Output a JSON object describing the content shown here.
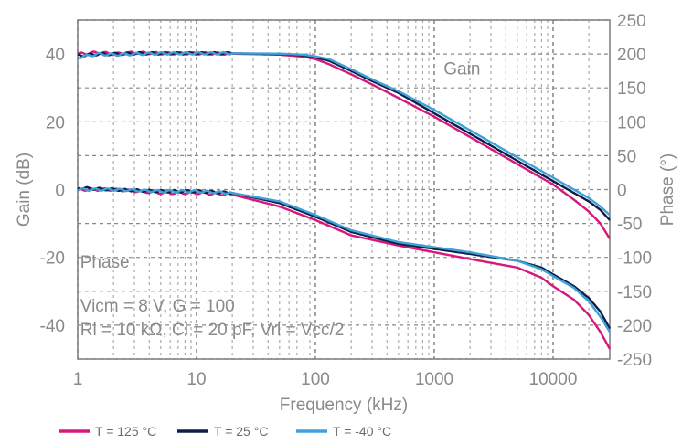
{
  "chart_data": {
    "type": "line",
    "xlabel": "Frequency (kHz)",
    "ylabel_left": "Gain (dB)",
    "ylabel_right": "Phase (°)",
    "x_scale": "log",
    "xlim": [
      1,
      30000
    ],
    "ylim_left": [
      -50,
      50
    ],
    "ylim_right": [
      -250,
      250
    ],
    "grid": true,
    "x_ticks": [
      {
        "value": 1,
        "label": "1"
      },
      {
        "value": 10,
        "label": "10"
      },
      {
        "value": 100,
        "label": "100"
      },
      {
        "value": 1000,
        "label": "1000"
      },
      {
        "value": 10000,
        "label": "10000"
      }
    ],
    "y_ticks_left": [
      {
        "value": 40,
        "label": "40"
      },
      {
        "value": 20,
        "label": "20"
      },
      {
        "value": 0,
        "label": "0"
      },
      {
        "value": -20,
        "label": "-20"
      },
      {
        "value": -40,
        "label": "-40"
      }
    ],
    "y_ticks_right": [
      {
        "value": 250,
        "label": "250"
      },
      {
        "value": 200,
        "label": "200"
      },
      {
        "value": 150,
        "label": "150"
      },
      {
        "value": 100,
        "label": "100"
      },
      {
        "value": 50,
        "label": "50"
      },
      {
        "value": 0,
        "label": "0"
      },
      {
        "value": -50,
        "label": "-50"
      },
      {
        "value": -100,
        "label": "-100"
      },
      {
        "value": -150,
        "label": "-150"
      },
      {
        "value": -200,
        "label": "-200"
      },
      {
        "value": -250,
        "label": "-250"
      }
    ],
    "annotations": [
      {
        "text": "Gain",
        "x": 1200,
        "y": 34
      },
      {
        "text": "Phase",
        "x": 1.05,
        "y": -23
      },
      {
        "text": "Vicm = 8 V, G = 100",
        "x": 1.05,
        "y": -36
      },
      {
        "text": "Rl = 10 kΩ, Cl = 20 pF, Vrl = Vcc/2",
        "x": 1.05,
        "y": -43
      }
    ],
    "legend_placement": "bottom",
    "series": [
      {
        "name": "T = 125 °C",
        "color": "#d6177c",
        "gain": {
          "x": [
            1,
            1.5,
            2,
            3,
            5,
            10,
            20,
            50,
            80,
            100,
            130,
            200,
            300,
            500,
            1000,
            2000,
            5000,
            10000,
            15000,
            20000,
            25000,
            30000
          ],
          "y": [
            40,
            40.5,
            40,
            40.4,
            40.2,
            40.2,
            40.1,
            39.8,
            39.2,
            38.5,
            37,
            34,
            31,
            27,
            21.5,
            15.5,
            7.5,
            1.5,
            -3,
            -6.5,
            -10,
            -14.5
          ]
        },
        "phase": {
          "x": [
            1,
            2,
            5,
            10,
            20,
            50,
            100,
            200,
            500,
            1000,
            2000,
            5000,
            8000,
            10000,
            15000,
            20000,
            25000,
            30000
          ],
          "y": [
            0,
            0,
            -1,
            -1,
            -1.5,
            -5,
            -9,
            -13.5,
            -16.5,
            -18.5,
            -20.5,
            -23,
            -26,
            -28.5,
            -32.5,
            -37,
            -42,
            -47
          ]
        }
      },
      {
        "name": "T = 25 °C",
        "color": "#0d1f45",
        "gain": {
          "x": [
            1,
            1.5,
            2,
            3,
            5,
            10,
            20,
            50,
            80,
            100,
            130,
            200,
            300,
            500,
            1000,
            2000,
            5000,
            10000,
            15000,
            20000,
            25000,
            30000
          ],
          "y": [
            39.5,
            40,
            40,
            40.2,
            40.2,
            40.2,
            40.2,
            40,
            39.6,
            39,
            38,
            35,
            32,
            28.5,
            22.5,
            16.5,
            8.5,
            2.5,
            -1,
            -3.5,
            -6,
            -9
          ]
        },
        "phase": {
          "x": [
            1,
            2,
            5,
            10,
            20,
            50,
            100,
            200,
            500,
            1000,
            2000,
            5000,
            8000,
            10000,
            15000,
            20000,
            25000,
            30000
          ],
          "y": [
            0.5,
            0,
            -0.5,
            -0.5,
            -1,
            -4,
            -8,
            -12.5,
            -16,
            -17.5,
            -19,
            -21,
            -23,
            -25,
            -28.5,
            -32,
            -36,
            -41
          ]
        }
      },
      {
        "name": "T = -40 °C",
        "color": "#3fa1da",
        "gain": {
          "x": [
            1,
            1.5,
            2,
            3,
            5,
            10,
            20,
            50,
            80,
            100,
            130,
            200,
            300,
            500,
            1000,
            2000,
            5000,
            10000,
            15000,
            20000,
            25000,
            30000
          ],
          "y": [
            39,
            40,
            39.8,
            40,
            40.2,
            40.2,
            40.2,
            40.1,
            39.8,
            39.3,
            38.5,
            35.5,
            32.5,
            29,
            23.5,
            17.5,
            9.5,
            3.5,
            0,
            -2.5,
            -5,
            -7.5
          ]
        },
        "phase": {
          "x": [
            1,
            2,
            5,
            10,
            20,
            50,
            100,
            200,
            500,
            1000,
            2000,
            5000,
            8000,
            10000,
            15000,
            20000,
            25000,
            30000
          ],
          "y": [
            0,
            0,
            -0.5,
            -0.5,
            -1,
            -3.5,
            -7.5,
            -12,
            -15.5,
            -17,
            -18.5,
            -21,
            -23.5,
            -25.5,
            -29,
            -33,
            -37.5,
            -42
          ]
        }
      }
    ]
  }
}
